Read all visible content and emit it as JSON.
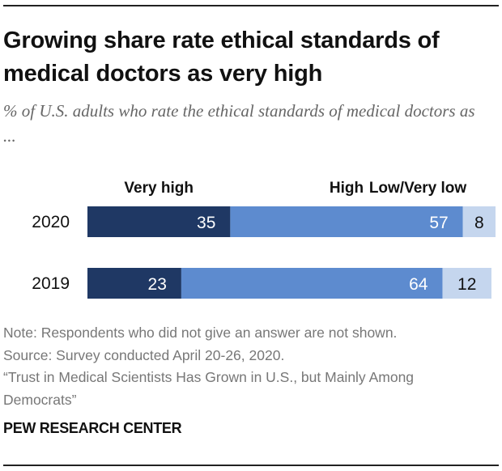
{
  "title": "Growing share rate ethical standards of medical doctors as very high",
  "subtitle": "% of U.S. adults who rate the ethical standards of medical doctors as ...",
  "chart_data": {
    "type": "bar",
    "orientation": "horizontal",
    "stacked": true,
    "categories": [
      "2020",
      "2019"
    ],
    "series": [
      {
        "name": "Very high",
        "values": [
          35,
          23
        ],
        "color": "#1f3864"
      },
      {
        "name": "High",
        "values": [
          57,
          64
        ],
        "color": "#5d8bcf"
      },
      {
        "name": "Low/Very low",
        "values": [
          8,
          12
        ],
        "color": "#c5d6ee"
      }
    ],
    "data_labels": [
      [
        "35",
        "57",
        "8"
      ],
      [
        "23",
        "64",
        "12"
      ]
    ],
    "xlim": [
      0,
      100
    ],
    "grid": false,
    "legend": "top"
  },
  "notes": {
    "note": "Note: Respondents who did not give an answer are not shown.",
    "source": "Source: Survey conducted April 20-26, 2020.",
    "report_line1": "“Trust in Medical Scientists Has Grown in U.S., but Mainly Among",
    "report_line2": "Democrats”"
  },
  "brand": "PEW RESEARCH CENTER"
}
